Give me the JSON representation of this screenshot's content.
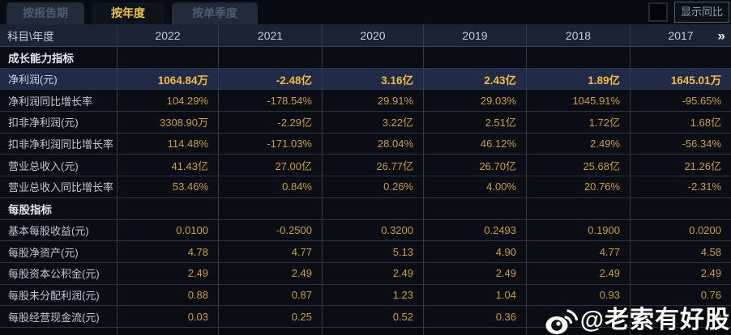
{
  "tabs": [
    {
      "label": "按报告期",
      "active": false
    },
    {
      "label": "按年度",
      "active": true
    },
    {
      "label": "按单季度",
      "active": false
    }
  ],
  "controls": {
    "show_yoy_label": "显示同比",
    "checkbox_checked": false
  },
  "table": {
    "corner_header": "科目\\年度",
    "year_columns": [
      "2022",
      "2021",
      "2020",
      "2019",
      "2018",
      "2017"
    ],
    "more_icon": "»",
    "rows": [
      {
        "type": "section",
        "label": "成长能力指标",
        "highlight": false,
        "values": [
          "",
          "",
          "",
          "",
          "",
          ""
        ]
      },
      {
        "type": "data",
        "label": "净利润(元)",
        "highlight": true,
        "values": [
          "1064.84万",
          "-2.48亿",
          "3.16亿",
          "2.43亿",
          "1.89亿",
          "1645.01万"
        ]
      },
      {
        "type": "data",
        "label": "净利润同比增长率",
        "highlight": false,
        "values": [
          "104.29%",
          "-178.54%",
          "29.91%",
          "29.03%",
          "1045.91%",
          "-95.65%"
        ]
      },
      {
        "type": "data",
        "label": "扣非净利润(元)",
        "highlight": false,
        "values": [
          "3308.90万",
          "-2.29亿",
          "3.22亿",
          "2.51亿",
          "1.72亿",
          "1.68亿"
        ]
      },
      {
        "type": "data",
        "label": "扣非净利润同比增长率",
        "highlight": false,
        "values": [
          "114.48%",
          "-171.03%",
          "28.04%",
          "46.12%",
          "2.49%",
          "-56.34%"
        ]
      },
      {
        "type": "data",
        "label": "营业总收入(元)",
        "highlight": false,
        "values": [
          "41.43亿",
          "27.00亿",
          "26.77亿",
          "26.70亿",
          "25.68亿",
          "21.26亿"
        ]
      },
      {
        "type": "data",
        "label": "营业总收入同比增长率",
        "highlight": false,
        "values": [
          "53.46%",
          "0.84%",
          "0.26%",
          "4.00%",
          "20.76%",
          "-2.31%"
        ]
      },
      {
        "type": "section",
        "label": "每股指标",
        "highlight": false,
        "values": [
          "",
          "",
          "",
          "",
          "",
          ""
        ]
      },
      {
        "type": "data",
        "label": "基本每股收益(元)",
        "highlight": false,
        "values": [
          "0.0100",
          "-0.2500",
          "0.3200",
          "0.2493",
          "0.1900",
          "0.0200"
        ]
      },
      {
        "type": "data",
        "label": "每股净资产(元)",
        "highlight": false,
        "values": [
          "4.78",
          "4.77",
          "5.13",
          "4.90",
          "4.77",
          "4.58"
        ]
      },
      {
        "type": "data",
        "label": "每股资本公积金(元)",
        "highlight": false,
        "values": [
          "2.49",
          "2.49",
          "2.49",
          "2.49",
          "2.49",
          "2.49"
        ]
      },
      {
        "type": "data",
        "label": "每股未分配利润(元)",
        "highlight": false,
        "values": [
          "0.88",
          "0.87",
          "1.23",
          "1.04",
          "0.93",
          "0.76"
        ]
      },
      {
        "type": "data",
        "label": "每股经营现金流(元)",
        "highlight": false,
        "values": [
          "0.03",
          "0.25",
          "0.52",
          "0.36",
          "0",
          "9"
        ]
      }
    ]
  },
  "watermark": {
    "text": "@老索有好股",
    "icon": "weibo-icon"
  },
  "colors": {
    "active_tab_text": "#f0c33e",
    "value_orange": "#d09c3e",
    "highlight_row_bg": "#1f2b47",
    "header_bg": "#1a2432",
    "page_bg": "#0a0e14"
  }
}
